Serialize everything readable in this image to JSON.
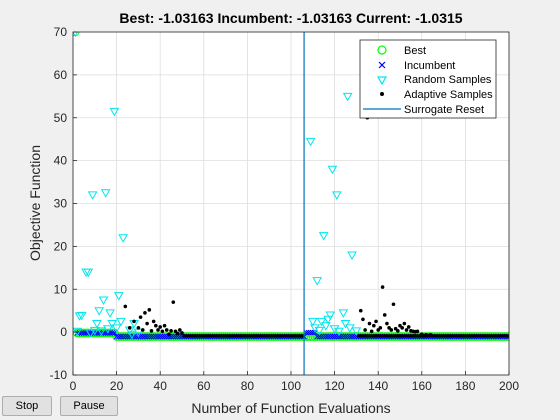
{
  "controls": {
    "stop_label": "Stop",
    "pause_label": "Pause"
  },
  "chart_data": {
    "type": "scatter",
    "title": "Best: -1.03163 Incumbent: -1.03163 Current: -1.0315",
    "xlabel": "Number of Function Evaluations",
    "ylabel": "Objective Function",
    "xlim": [
      0,
      200
    ],
    "ylim": [
      -10,
      70
    ],
    "xticks": [
      0,
      20,
      40,
      60,
      80,
      100,
      120,
      140,
      160,
      180,
      200
    ],
    "yticks": [
      -10,
      0,
      10,
      20,
      30,
      40,
      50,
      60,
      70
    ],
    "grid": true,
    "legend_position": "top-right",
    "legend": [
      "Best",
      "Incumbent",
      "Random Samples",
      "Adaptive Samples",
      "Surrogate Reset"
    ],
    "colors": {
      "best": "#00ff00",
      "incumbent": "#0000ff",
      "random": "#00e5ee",
      "adaptive": "#000000",
      "reset": "#0072bd"
    },
    "surrogate_reset": 106,
    "best_value": -1.03163,
    "random_samples": [
      [
        1,
        70
      ],
      [
        2,
        0.2
      ],
      [
        3,
        3.8
      ],
      [
        4,
        3.9
      ],
      [
        6,
        14
      ],
      [
        7,
        14
      ],
      [
        8,
        -0.2
      ],
      [
        9,
        32
      ],
      [
        10,
        0.4
      ],
      [
        11,
        2
      ],
      [
        12,
        5
      ],
      [
        13,
        0.3
      ],
      [
        14,
        7.5
      ],
      [
        15,
        32.5
      ],
      [
        16,
        0.8
      ],
      [
        17,
        4.5
      ],
      [
        18,
        2
      ],
      [
        19,
        51.5
      ],
      [
        20,
        1
      ],
      [
        21,
        8.5
      ],
      [
        22,
        2.5
      ],
      [
        23,
        22
      ],
      [
        26,
        0.5
      ],
      [
        27,
        -0.5
      ],
      [
        28,
        2
      ],
      [
        30,
        0
      ],
      [
        109,
        44.5
      ],
      [
        110,
        2.5
      ],
      [
        111,
        1
      ],
      [
        112,
        12
      ],
      [
        113,
        0.4
      ],
      [
        114,
        2.5
      ],
      [
        115,
        22.5
      ],
      [
        116,
        1.5
      ],
      [
        117,
        3
      ],
      [
        118,
        4
      ],
      [
        119,
        38
      ],
      [
        120,
        0.8
      ],
      [
        121,
        32
      ],
      [
        122,
        0.2
      ],
      [
        124,
        4.5
      ],
      [
        125,
        2
      ],
      [
        126,
        55
      ],
      [
        127,
        1
      ],
      [
        128,
        18
      ],
      [
        130,
        0.3
      ]
    ],
    "adaptive_samples": [
      [
        24,
        6
      ],
      [
        26,
        1
      ],
      [
        28,
        2.5
      ],
      [
        30,
        1
      ],
      [
        31,
        3.5
      ],
      [
        32,
        0.5
      ],
      [
        33,
        4.5
      ],
      [
        34,
        2
      ],
      [
        35,
        5.2
      ],
      [
        36,
        0.3
      ],
      [
        37,
        2.5
      ],
      [
        38,
        1.5
      ],
      [
        39,
        0.5
      ],
      [
        40,
        1.2
      ],
      [
        41,
        0.2
      ],
      [
        42,
        1.5
      ],
      [
        43,
        0.5
      ],
      [
        44,
        -0.5
      ],
      [
        45,
        0.3
      ],
      [
        46,
        7
      ],
      [
        47,
        0.2
      ],
      [
        48,
        -0.3
      ],
      [
        49,
        0.5
      ],
      [
        50,
        -0.2
      ],
      [
        132,
        5
      ],
      [
        133,
        3
      ],
      [
        134,
        0.5
      ],
      [
        135,
        50
      ],
      [
        136,
        2
      ],
      [
        137,
        0.2
      ],
      [
        138,
        1.5
      ],
      [
        139,
        2.5
      ],
      [
        140,
        0.5
      ],
      [
        141,
        1
      ],
      [
        142,
        10.5
      ],
      [
        143,
        4
      ],
      [
        144,
        2
      ],
      [
        145,
        1
      ],
      [
        146,
        0.5
      ],
      [
        147,
        6.5
      ],
      [
        148,
        0.8
      ],
      [
        149,
        0.3
      ],
      [
        150,
        1.5
      ],
      [
        151,
        1
      ],
      [
        152,
        2
      ],
      [
        153,
        0.5
      ],
      [
        154,
        1.2
      ],
      [
        155,
        0.3
      ],
      [
        156,
        0.2
      ],
      [
        157,
        0.1
      ],
      [
        158,
        0.2
      ],
      [
        160,
        -0.5
      ],
      [
        162,
        -0.6
      ],
      [
        164,
        -0.6
      ]
    ]
  }
}
